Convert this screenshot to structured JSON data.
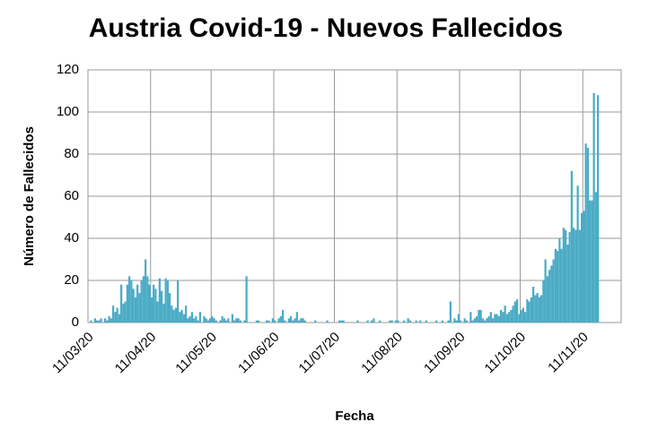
{
  "chart_data": {
    "type": "bar",
    "title": "Austria Covid-19 - Nuevos Fallecidos",
    "x_label": "Fecha",
    "y_label": "Número de Fallecidos",
    "categories": [
      "11/03/20",
      null,
      null,
      null,
      null,
      null,
      null,
      null,
      null,
      null,
      null,
      null,
      null,
      null,
      null,
      null,
      null,
      null,
      null,
      null,
      null,
      null,
      null,
      null,
      null,
      null,
      null,
      null,
      null,
      null,
      null,
      "11/04/20",
      null,
      null,
      null,
      null,
      null,
      null,
      null,
      null,
      null,
      null,
      null,
      null,
      null,
      null,
      null,
      null,
      null,
      null,
      null,
      null,
      null,
      null,
      null,
      null,
      null,
      null,
      null,
      null,
      null,
      "11/05/20",
      null,
      null,
      null,
      null,
      null,
      null,
      null,
      null,
      null,
      null,
      null,
      null,
      null,
      null,
      null,
      null,
      null,
      null,
      null,
      null,
      null,
      null,
      null,
      null,
      null,
      null,
      null,
      null,
      null,
      null,
      "11/06/20",
      null,
      null,
      null,
      null,
      null,
      null,
      null,
      null,
      null,
      null,
      null,
      null,
      null,
      null,
      null,
      null,
      null,
      null,
      null,
      null,
      null,
      null,
      null,
      null,
      null,
      null,
      null,
      null,
      null,
      "11/07/20",
      null,
      null,
      null,
      null,
      null,
      null,
      null,
      null,
      null,
      null,
      null,
      null,
      null,
      null,
      null,
      null,
      null,
      null,
      null,
      null,
      null,
      null,
      null,
      null,
      null,
      null,
      null,
      null,
      null,
      null,
      "11/08/20",
      null,
      null,
      null,
      null,
      null,
      null,
      null,
      null,
      null,
      null,
      null,
      null,
      null,
      null,
      null,
      null,
      null,
      null,
      null,
      null,
      null,
      null,
      null,
      null,
      null,
      null,
      null,
      null,
      null,
      null,
      "11/09/20",
      null,
      null,
      null,
      null,
      null,
      null,
      null,
      null,
      null,
      null,
      null,
      null,
      null,
      null,
      null,
      null,
      null,
      null,
      null,
      null,
      null,
      null,
      null,
      null,
      null,
      null,
      null,
      null,
      null,
      "11/10/20",
      null,
      null,
      null,
      null,
      null,
      null,
      null,
      null,
      null,
      null,
      null,
      null,
      null,
      null,
      null,
      null,
      null,
      null,
      null,
      null,
      null,
      null,
      null,
      null,
      null,
      null,
      null,
      null,
      null,
      null,
      "11/11/20",
      null,
      null,
      null,
      null,
      null,
      null,
      null,
      null,
      null,
      null,
      null,
      null,
      null,
      null,
      null,
      null,
      null,
      null
    ],
    "values": [
      0,
      1,
      0,
      2,
      1,
      1,
      2,
      0,
      2,
      1,
      3,
      2,
      8,
      5,
      7,
      4,
      18,
      9,
      10,
      18,
      22,
      20,
      16,
      12,
      18,
      14,
      20,
      22,
      30,
      22,
      18,
      12,
      18,
      16,
      10,
      21,
      15,
      9,
      21,
      20,
      14,
      8,
      6,
      7,
      20,
      5,
      6,
      4,
      8,
      2,
      3,
      5,
      2,
      3,
      1,
      5,
      0,
      3,
      2,
      1,
      2,
      3,
      2,
      1,
      0,
      1,
      3,
      2,
      1,
      2,
      0,
      4,
      1,
      2,
      2,
      1,
      0,
      1,
      22,
      0,
      0,
      0,
      0,
      1,
      1,
      0,
      0,
      0,
      1,
      1,
      0,
      2,
      1,
      0,
      2,
      3,
      6,
      1,
      0,
      2,
      3,
      1,
      2,
      5,
      1,
      2,
      2,
      1,
      0,
      0,
      0,
      0,
      1,
      0,
      0,
      0,
      0,
      0,
      1,
      0,
      0,
      0,
      0,
      0,
      1,
      1,
      1,
      0,
      0,
      0,
      0,
      0,
      0,
      1,
      0,
      0,
      0,
      0,
      1,
      0,
      1,
      2,
      0,
      0,
      1,
      0,
      0,
      0,
      0,
      1,
      1,
      0,
      1,
      1,
      0,
      0,
      1,
      0,
      2,
      1,
      0,
      0,
      1,
      0,
      1,
      0,
      0,
      1,
      0,
      0,
      0,
      0,
      1,
      0,
      0,
      1,
      0,
      0,
      1,
      10,
      0,
      2,
      1,
      4,
      1,
      0,
      2,
      1,
      0,
      5,
      1,
      2,
      3,
      6,
      6,
      2,
      1,
      2,
      3,
      5,
      2,
      4,
      4,
      3,
      6,
      5,
      8,
      4,
      5,
      6,
      8,
      10,
      11,
      4,
      6,
      7,
      5,
      11,
      10,
      12,
      17,
      13,
      14,
      12,
      13,
      20,
      30,
      22,
      25,
      27,
      30,
      35,
      34,
      40,
      35,
      45,
      44,
      37,
      43,
      72,
      45,
      44,
      65,
      44,
      52,
      53,
      85,
      83,
      58,
      58,
      109,
      62,
      108,
      null,
      null,
      null,
      null,
      null,
      null,
      null,
      null,
      null,
      null,
      null
    ],
    "color": "#4bacc6",
    "ylim": [
      0,
      120
    ],
    "yticks": [
      0,
      20,
      40,
      60,
      80,
      100,
      120
    ],
    "grid": true
  }
}
